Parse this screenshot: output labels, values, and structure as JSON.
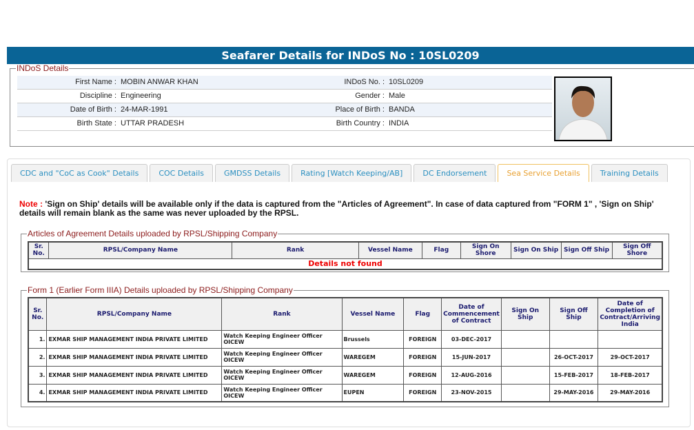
{
  "header": {
    "title": "Seafarer Details for INDoS No : 10SL0209",
    "color": "#0a6496"
  },
  "indos": {
    "legend": "INDoS Details",
    "rows": [
      {
        "l1": "First Name :",
        "v1": "MOBIN ANWAR KHAN",
        "l2": "INDoS No. :",
        "v2": "10SL0209"
      },
      {
        "l1": "Discipline :",
        "v1": "Engineering",
        "l2": "Gender :",
        "v2": "Male"
      },
      {
        "l1": "Date of Birth :",
        "v1": "24-MAR-1991",
        "l2": "Place of Birth :",
        "v2": "BANDA"
      },
      {
        "l1": "Birth State :",
        "v1": "UTTAR PRADESH",
        "l2": "Birth Country :",
        "v2": "INDIA"
      }
    ]
  },
  "tabs": [
    {
      "label": "CDC and \"CoC as Cook\" Details"
    },
    {
      "label": "COC Details"
    },
    {
      "label": "GMDSS Details"
    },
    {
      "label": "Rating [Watch Keeping/AB]"
    },
    {
      "label": "DC Endorsement"
    },
    {
      "label": "Sea Service Details",
      "active": true
    },
    {
      "label": "Training Details"
    }
  ],
  "note": {
    "prefix": "Note :",
    "text": " 'Sign on Ship' details will be available only if the data is captured from the \"Articles of Agreement\". In case of data captured from \"FORM 1\" , 'Sign on Ship' details will remain blank as the same was never uploaded by the RPSL."
  },
  "articles": {
    "legend": "Articles of Agreement Details uploaded by RPSL/Shipping Company",
    "headers": [
      "Sr. No.",
      "RPSL/Company Name",
      "Rank",
      "Vessel Name",
      "Flag",
      "Sign On Shore",
      "Sign On Ship",
      "Sign Off Ship",
      "Sign Off Shore"
    ],
    "empty": "Details not found"
  },
  "form1": {
    "legend": "Form 1 (Earlier Form IIIA) Details uploaded by RPSL/Shipping Company",
    "headers": [
      "Sr. No.",
      "RPSL/Company Name",
      "Rank",
      "Vessel Name",
      "Flag",
      "Date of Commencement of Contract",
      "Sign On Ship",
      "Sign Off Ship",
      "Date of Completion of Contract/Arriving India"
    ],
    "rows": [
      [
        "1.",
        "EXMAR SHIP MANAGEMENT INDIA PRIVATE LIMITED",
        "Watch Keeping Engineer Officer OICEW",
        "Brussels",
        "FOREIGN",
        "03-DEC-2017",
        "",
        "",
        ""
      ],
      [
        "2.",
        "EXMAR SHIP MANAGEMENT INDIA PRIVATE LIMITED",
        "Watch Keeping Engineer Officer OICEW",
        "WAREGEM",
        "FOREIGN",
        "15-JUN-2017",
        "",
        "26-OCT-2017",
        "29-OCT-2017"
      ],
      [
        "3.",
        "EXMAR SHIP MANAGEMENT INDIA PRIVATE LIMITED",
        "Watch Keeping Engineer Officer OICEW",
        "WAREGEM",
        "FOREIGN",
        "12-AUG-2016",
        "",
        "15-FEB-2017",
        "18-FEB-2017"
      ],
      [
        "4.",
        "EXMAR SHIP MANAGEMENT INDIA PRIVATE LIMITED",
        "Watch Keeping Engineer Officer OICEW",
        "EUPEN",
        "FOREIGN",
        "23-NOV-2015",
        "",
        "29-MAY-2016",
        "29-MAY-2016"
      ]
    ]
  }
}
